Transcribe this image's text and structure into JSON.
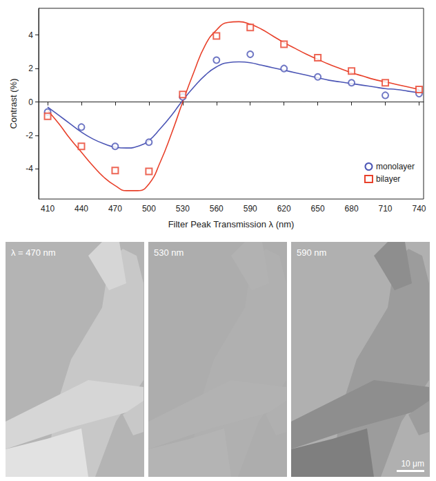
{
  "chart_data": {
    "type": "scatter",
    "x_label": "Filter Peak Transmission λ (nm)",
    "y_label": "Contrast (%)",
    "x": [
      410,
      440,
      470,
      500,
      530,
      560,
      590,
      620,
      650,
      680,
      710,
      740
    ],
    "series": [
      {
        "name": "monolayer",
        "color": "#4b55b5",
        "marker": "circle",
        "values": [
          -0.6,
          -1.5,
          -2.65,
          -2.4,
          0.3,
          2.5,
          2.85,
          2.0,
          1.5,
          1.15,
          0.4,
          0.5
        ],
        "fit": {
          "x": [
            410,
            420,
            430,
            440,
            450,
            460,
            470,
            480,
            490,
            500,
            510,
            520,
            530,
            540,
            550,
            560,
            570,
            580,
            590,
            600,
            610,
            620,
            630,
            640,
            650,
            660,
            670,
            680,
            690,
            700,
            710,
            720,
            730,
            740
          ],
          "values": [
            -0.3,
            -0.8,
            -1.3,
            -1.8,
            -2.2,
            -2.5,
            -2.7,
            -2.75,
            -2.65,
            -2.3,
            -1.6,
            -0.8,
            0.1,
            0.9,
            1.6,
            2.1,
            2.35,
            2.4,
            2.35,
            2.2,
            2.05,
            1.9,
            1.75,
            1.6,
            1.45,
            1.3,
            1.2,
            1.1,
            1.0,
            0.9,
            0.8,
            0.75,
            0.65,
            0.55
          ]
        }
      },
      {
        "name": "bilayer",
        "color": "#e8402a",
        "marker": "square",
        "values": [
          -0.85,
          -2.65,
          -4.1,
          -4.15,
          0.45,
          3.95,
          4.45,
          3.45,
          2.65,
          1.85,
          1.15,
          0.75
        ],
        "fit": {
          "x": [
            410,
            420,
            430,
            440,
            450,
            460,
            470,
            480,
            490,
            500,
            510,
            520,
            530,
            540,
            550,
            560,
            570,
            580,
            590,
            600,
            610,
            620,
            630,
            640,
            650,
            660,
            670,
            680,
            690,
            700,
            710,
            720,
            730,
            740
          ],
          "values": [
            -0.5,
            -1.3,
            -2.2,
            -3.0,
            -3.8,
            -4.5,
            -5.0,
            -5.3,
            -5.3,
            -4.9,
            -3.6,
            -1.9,
            0.0,
            1.8,
            3.4,
            4.3,
            4.75,
            4.8,
            4.65,
            4.35,
            3.95,
            3.55,
            3.2,
            2.85,
            2.55,
            2.25,
            2.0,
            1.75,
            1.55,
            1.35,
            1.2,
            1.05,
            0.9,
            0.75
          ]
        }
      }
    ],
    "hlines": [
      0
    ],
    "xlim": [
      402,
      744
    ],
    "xticks": [
      410,
      440,
      470,
      500,
      530,
      560,
      590,
      620,
      650,
      680,
      710,
      740
    ],
    "ylim": [
      -5.8,
      5.6
    ],
    "yticks": [
      -4,
      -2,
      0,
      2,
      4
    ],
    "legend": "lower right",
    "grid": false
  },
  "panels": [
    {
      "label": "λ = 470 nm"
    },
    {
      "label": "530 nm"
    },
    {
      "label": "590 nm"
    }
  ],
  "scale_bar": "10 μm"
}
